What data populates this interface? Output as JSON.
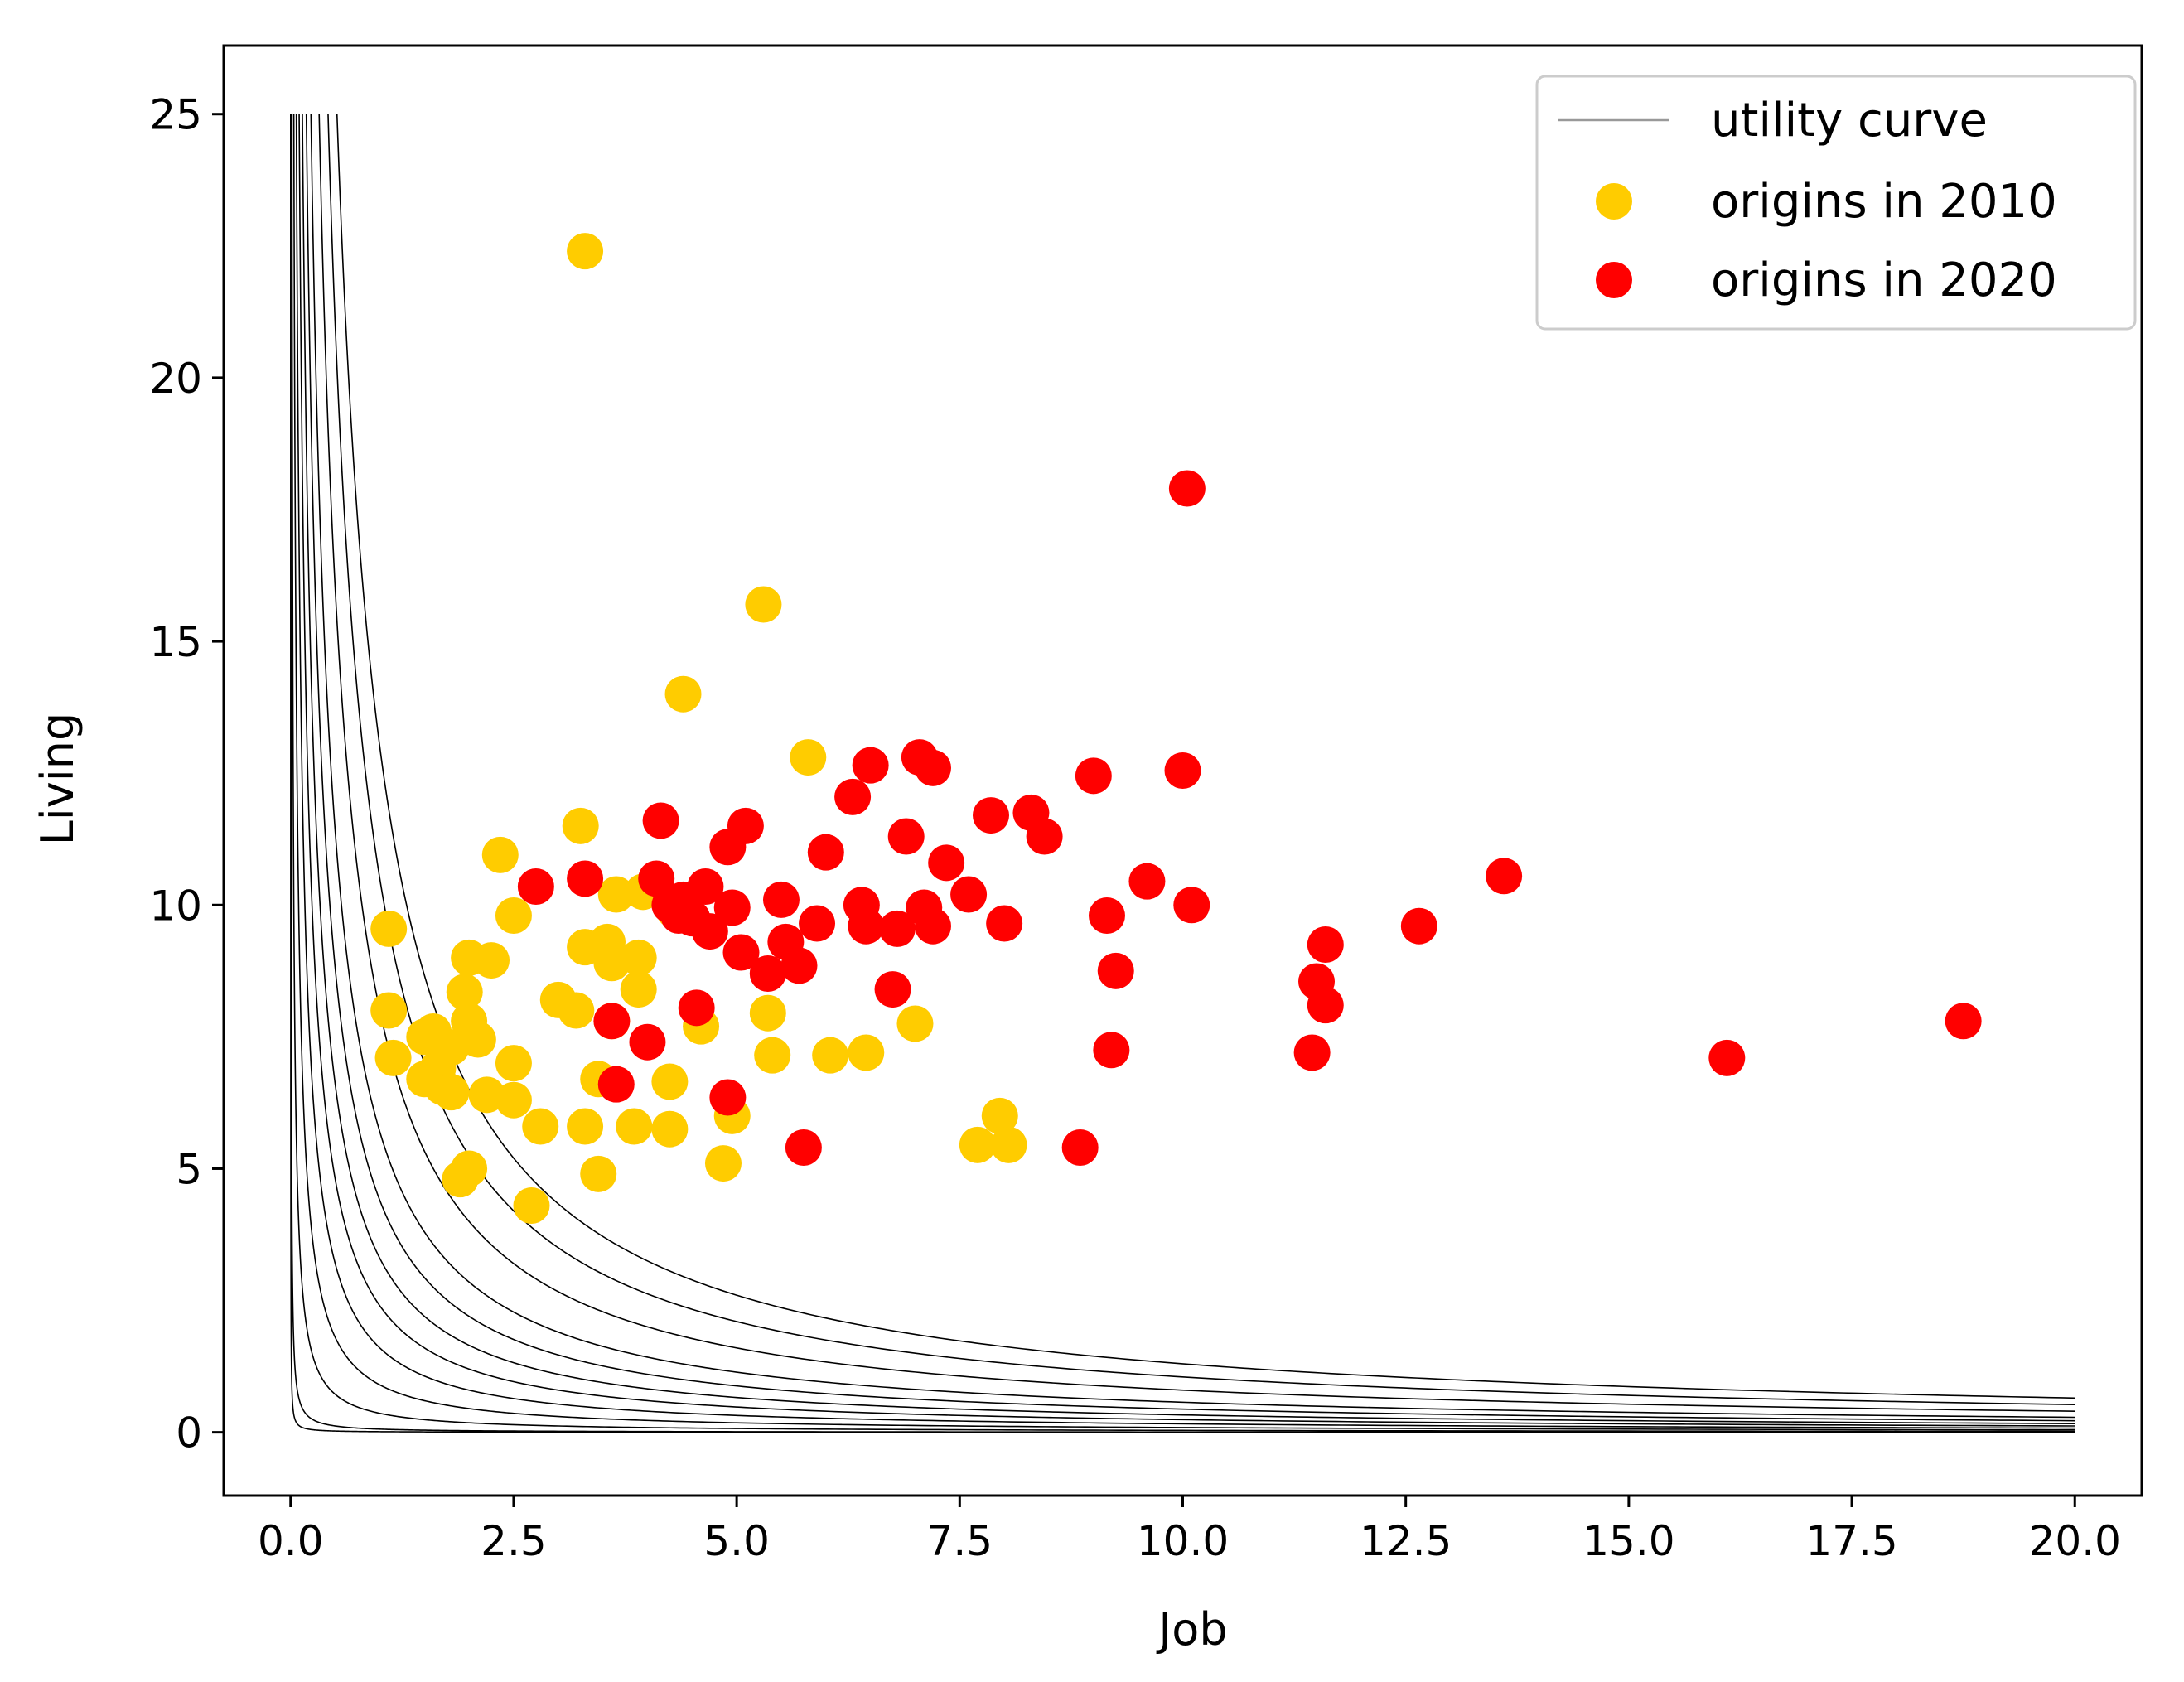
{
  "chart_data": {
    "type": "scatter",
    "title": "",
    "xlabel": "Job",
    "ylabel": "Living",
    "xlim": [
      -0.75,
      20.75
    ],
    "ylim": [
      -1.2,
      26.3
    ],
    "xticks": [
      0.0,
      2.5,
      5.0,
      7.5,
      10.0,
      12.5,
      15.0,
      17.5,
      20.0
    ],
    "xtick_labels": [
      "0.0",
      "2.5",
      "5.0",
      "7.5",
      "10.0",
      "12.5",
      "15.0",
      "17.5",
      "20.0"
    ],
    "yticks": [
      0,
      5,
      10,
      15,
      20,
      25
    ],
    "ytick_labels": [
      "0",
      "5",
      "10",
      "15",
      "20",
      "25"
    ],
    "grid": false,
    "legend_position": "top-right",
    "legend": [
      {
        "label": "utility curve",
        "kind": "line",
        "color": "#999999"
      },
      {
        "label": "origins in 2010",
        "kind": "marker",
        "color": "#FFCC00"
      },
      {
        "label": "origins in 2020",
        "kind": "marker",
        "color": "#FF0000"
      }
    ],
    "utility_curves": {
      "x_max": 20,
      "y_max": 25,
      "line_color": "#000000",
      "constants": [
        0.012,
        0.06,
        0.36,
        0.9,
        1.6,
        2.4,
        3.3,
        4.4,
        5.7,
        8.0,
        10.5,
        13.0
      ]
    },
    "series": [
      {
        "name": "origins in 2010",
        "color": "#FFCC00",
        "points": [
          [
            3.3,
            22.4
          ],
          [
            5.3,
            15.7
          ],
          [
            4.4,
            14.0
          ],
          [
            5.8,
            12.8
          ],
          [
            3.25,
            11.5
          ],
          [
            2.35,
            10.95
          ],
          [
            1.1,
            9.55
          ],
          [
            2.5,
            9.8
          ],
          [
            3.65,
            10.2
          ],
          [
            3.95,
            10.25
          ],
          [
            3.3,
            9.2
          ],
          [
            3.55,
            9.3
          ],
          [
            3.6,
            8.9
          ],
          [
            3.9,
            9.0
          ],
          [
            4.3,
            9.9
          ],
          [
            2.0,
            9.0
          ],
          [
            2.25,
            8.95
          ],
          [
            1.95,
            8.35
          ],
          [
            3.0,
            8.2
          ],
          [
            3.2,
            8.0
          ],
          [
            3.9,
            8.4
          ],
          [
            3.6,
            7.8
          ],
          [
            1.1,
            8.0
          ],
          [
            1.5,
            7.5
          ],
          [
            1.6,
            7.6
          ],
          [
            1.8,
            7.3
          ],
          [
            2.0,
            7.8
          ],
          [
            2.1,
            7.45
          ],
          [
            1.15,
            7.1
          ],
          [
            1.65,
            6.9
          ],
          [
            1.5,
            6.7
          ],
          [
            1.7,
            6.55
          ],
          [
            1.8,
            6.45
          ],
          [
            2.5,
            7.0
          ],
          [
            2.2,
            6.4
          ],
          [
            2.5,
            6.3
          ],
          [
            3.45,
            6.7
          ],
          [
            4.25,
            6.65
          ],
          [
            4.6,
            7.7
          ],
          [
            2.8,
            5.8
          ],
          [
            3.3,
            5.8
          ],
          [
            3.85,
            5.8
          ],
          [
            4.25,
            5.75
          ],
          [
            4.95,
            6.0
          ],
          [
            2.0,
            5.0
          ],
          [
            1.9,
            4.8
          ],
          [
            2.7,
            4.3
          ],
          [
            3.45,
            4.9
          ],
          [
            4.85,
            5.1
          ],
          [
            5.35,
            7.95
          ],
          [
            5.4,
            7.15
          ],
          [
            6.05,
            7.15
          ],
          [
            6.45,
            7.2
          ],
          [
            7.0,
            7.75
          ],
          [
            7.7,
            5.45
          ],
          [
            7.95,
            6.0
          ],
          [
            8.05,
            5.45
          ]
        ]
      },
      {
        "name": "origins in 2020",
        "color": "#FF0000",
        "points": [
          [
            10.05,
            17.9
          ],
          [
            9.0,
            12.45
          ],
          [
            10.0,
            12.55
          ],
          [
            7.05,
            12.8
          ],
          [
            7.2,
            12.6
          ],
          [
            6.5,
            12.65
          ],
          [
            6.3,
            12.05
          ],
          [
            8.3,
            11.75
          ],
          [
            7.85,
            11.7
          ],
          [
            8.45,
            11.3
          ],
          [
            6.9,
            11.3
          ],
          [
            4.15,
            11.6
          ],
          [
            5.1,
            11.5
          ],
          [
            4.9,
            11.1
          ],
          [
            6.0,
            11.0
          ],
          [
            7.35,
            10.8
          ],
          [
            9.6,
            10.45
          ],
          [
            13.6,
            10.55
          ],
          [
            2.75,
            10.35
          ],
          [
            3.3,
            10.5
          ],
          [
            4.1,
            10.5
          ],
          [
            4.65,
            10.35
          ],
          [
            4.25,
            10.0
          ],
          [
            4.4,
            10.1
          ],
          [
            5.5,
            10.1
          ],
          [
            6.4,
            10.0
          ],
          [
            7.6,
            10.2
          ],
          [
            7.1,
            9.95
          ],
          [
            9.15,
            9.8
          ],
          [
            10.1,
            10.0
          ],
          [
            4.35,
            9.8
          ],
          [
            4.5,
            9.75
          ],
          [
            4.95,
            9.95
          ],
          [
            5.55,
            9.3
          ],
          [
            4.7,
            9.5
          ],
          [
            5.05,
            9.1
          ],
          [
            5.9,
            9.65
          ],
          [
            6.45,
            9.6
          ],
          [
            6.8,
            9.55
          ],
          [
            7.2,
            9.6
          ],
          [
            8.0,
            9.65
          ],
          [
            11.6,
            9.25
          ],
          [
            12.65,
            9.6
          ],
          [
            5.35,
            8.7
          ],
          [
            5.7,
            8.85
          ],
          [
            9.25,
            8.75
          ],
          [
            11.5,
            8.55
          ],
          [
            11.6,
            8.1
          ],
          [
            6.75,
            8.4
          ],
          [
            3.6,
            7.8
          ],
          [
            4.55,
            8.05
          ],
          [
            4.0,
            7.4
          ],
          [
            9.2,
            7.25
          ],
          [
            11.45,
            7.2
          ],
          [
            16.1,
            7.1
          ],
          [
            18.75,
            7.8
          ],
          [
            3.65,
            6.6
          ],
          [
            4.9,
            6.35
          ],
          [
            5.75,
            5.4
          ],
          [
            8.85,
            5.4
          ]
        ]
      }
    ]
  }
}
